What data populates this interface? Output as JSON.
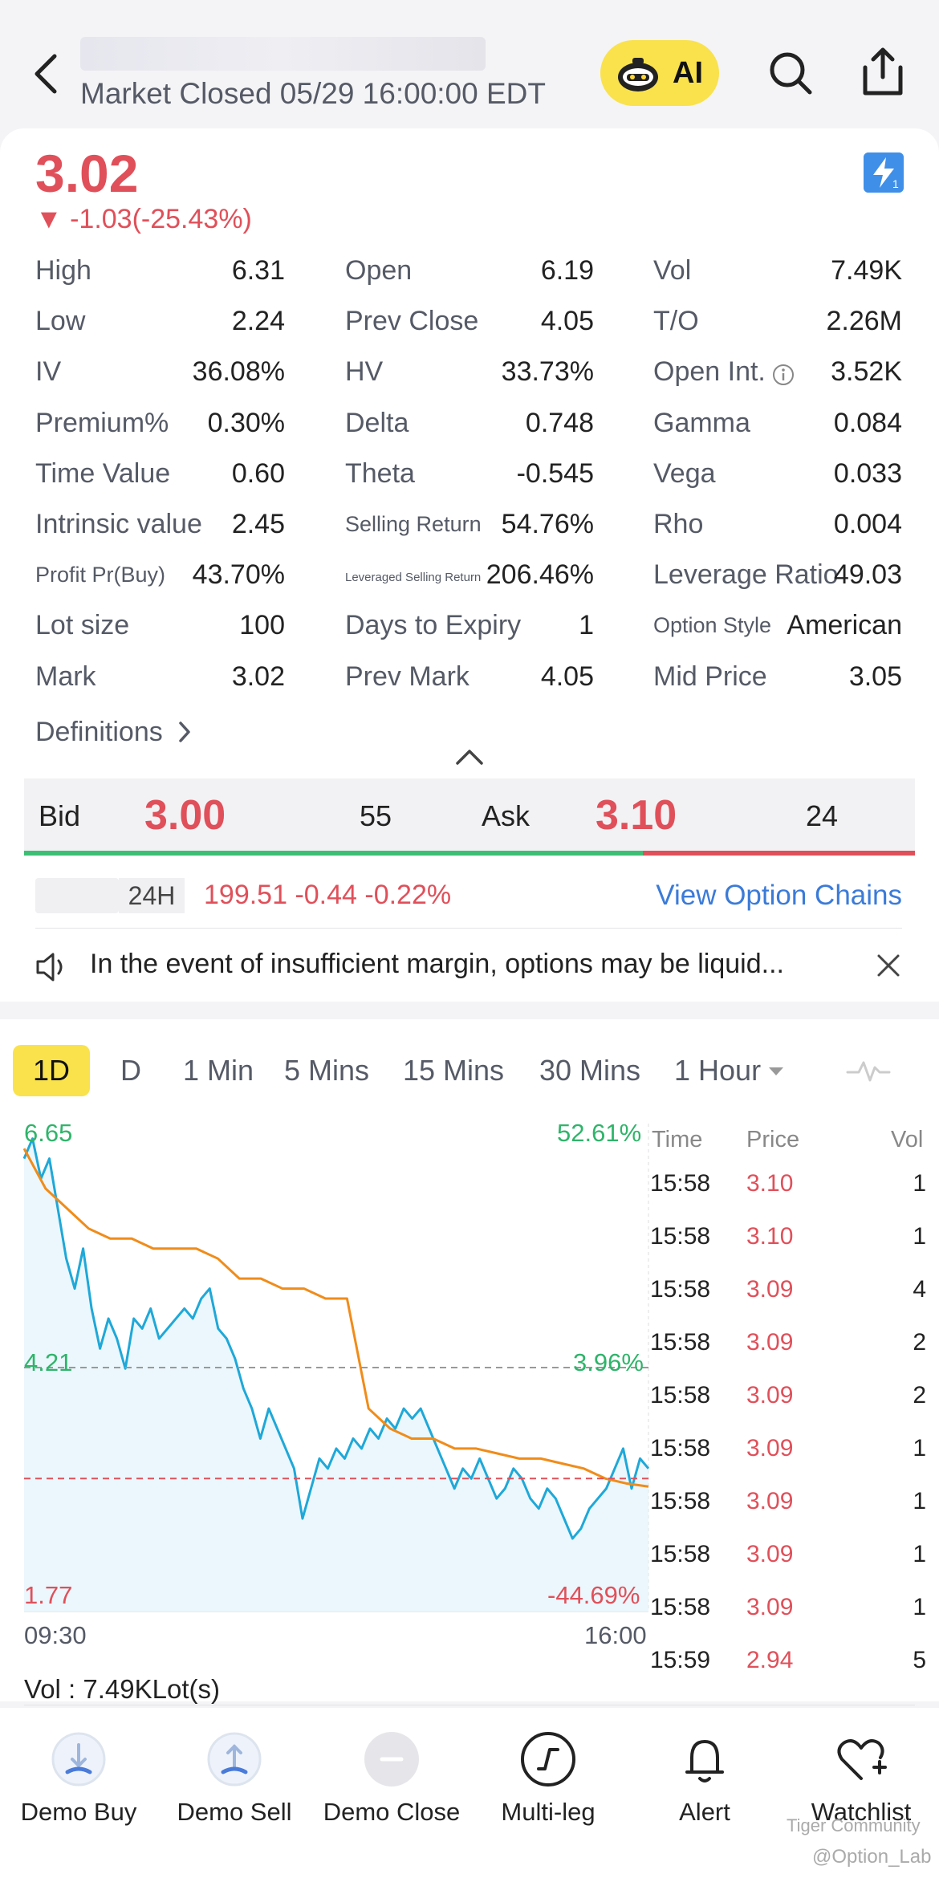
{
  "header": {
    "market_status": "Market Closed  05/29 16:00:00 EDT",
    "ai_label": "AI"
  },
  "quote": {
    "price": "3.02",
    "change": "▼ -1.03(-25.43%)",
    "color_down": "#e0505a"
  },
  "stats": [
    [
      {
        "label": "High",
        "value": "6.31"
      },
      {
        "label": "Open",
        "value": "6.19"
      },
      {
        "label": "Vol",
        "value": "7.49K"
      }
    ],
    [
      {
        "label": "Low",
        "value": "2.24"
      },
      {
        "label": "Prev Close",
        "value": "4.05"
      },
      {
        "label": "T/O",
        "value": "2.26M"
      }
    ],
    [
      {
        "label": "IV",
        "value": "36.08%"
      },
      {
        "label": "HV",
        "value": "33.73%"
      },
      {
        "label": "Open Int.",
        "value": "3.52K"
      }
    ],
    [
      {
        "label": "Premium%",
        "value": "0.30%"
      },
      {
        "label": "Delta",
        "value": "0.748"
      },
      {
        "label": "Gamma",
        "value": "0.084"
      }
    ],
    [
      {
        "label": "Time Value",
        "value": "0.60"
      },
      {
        "label": "Theta",
        "value": "-0.545"
      },
      {
        "label": "Vega",
        "value": "0.033"
      }
    ],
    [
      {
        "label": "Intrinsic value",
        "value": "2.45"
      },
      {
        "label": "Selling Return",
        "value": "54.76%"
      },
      {
        "label": "Rho",
        "value": "0.004"
      }
    ],
    [
      {
        "label": "Profit Pr(Buy)",
        "value": "43.70%"
      },
      {
        "label": "Leveraged Selling Return",
        "value": "206.46%"
      },
      {
        "label": "Leverage Ratio",
        "value": "49.03"
      }
    ],
    [
      {
        "label": "Lot size",
        "value": "100"
      },
      {
        "label": "Days to Expiry",
        "value": "1"
      },
      {
        "label": "Option Style",
        "value": "American"
      }
    ],
    [
      {
        "label": "Mark",
        "value": "3.02"
      },
      {
        "label": "Prev Mark",
        "value": "4.05"
      },
      {
        "label": "Mid Price",
        "value": "3.05"
      }
    ]
  ],
  "definitions_label": "Definitions",
  "bid_ask": {
    "bid_label": "Bid",
    "bid_price": "3.00",
    "bid_size": "55",
    "ask_label": "Ask",
    "ask_price": "3.10",
    "ask_size": "24"
  },
  "underlying": {
    "session_tag": "24H",
    "quote": "199.51 -0.44 -0.22%",
    "view_chains": "View Option Chains"
  },
  "notice": {
    "text": "In the event of insufficient margin, options may be liquid..."
  },
  "period_tabs": [
    "1D",
    "D",
    "1 Min",
    "5 Mins",
    "15 Mins",
    "30 Mins",
    "1 Hour"
  ],
  "chart_data": {
    "type": "line",
    "x_start_label": "09:30",
    "x_end_label": "16:00",
    "y_max_label": "6.65",
    "y_max_pct": "52.61%",
    "y_ref_label": "4.21",
    "y_ref_pct": "3.96%",
    "y_min_label": "1.77",
    "y_min_pct": "-44.69%",
    "ylim": [
      1.77,
      6.65
    ],
    "prev_close": 4.05,
    "series": [
      {
        "color": "#1fa8d8",
        "values": [
          6.3,
          6.5,
          6.1,
          6.3,
          5.8,
          5.3,
          5.0,
          5.4,
          4.8,
          4.4,
          4.7,
          4.5,
          4.2,
          4.7,
          4.6,
          4.8,
          4.5,
          4.6,
          4.7,
          4.8,
          4.7,
          4.9,
          5.0,
          4.6,
          4.5,
          4.3,
          4.0,
          3.8,
          3.5,
          3.8,
          3.6,
          3.4,
          3.2,
          2.7,
          3.0,
          3.3,
          3.2,
          3.4,
          3.3,
          3.5,
          3.4,
          3.6,
          3.5,
          3.7,
          3.6,
          3.8,
          3.7,
          3.8,
          3.6,
          3.4,
          3.2,
          3.0,
          3.2,
          3.1,
          3.3,
          3.1,
          2.9,
          3.0,
          3.2,
          3.1,
          2.9,
          2.8,
          3.0,
          2.9,
          2.7,
          2.5,
          2.6,
          2.8,
          2.9,
          3.0,
          3.2,
          3.4,
          3.0,
          3.3,
          3.2
        ]
      },
      {
        "color": "#f08c1a",
        "values": [
          6.4,
          6.0,
          5.8,
          5.6,
          5.5,
          5.5,
          5.4,
          5.4,
          5.4,
          5.3,
          5.1,
          5.1,
          5.0,
          5.0,
          4.9,
          4.9,
          3.8,
          3.6,
          3.5,
          3.5,
          3.4,
          3.4,
          3.35,
          3.3,
          3.3,
          3.25,
          3.2,
          3.1,
          3.05,
          3.02
        ]
      }
    ],
    "ref_lines": [
      {
        "value": 4.21,
        "color": "#999999",
        "style": "dashed"
      },
      {
        "value": 3.1,
        "color": "#e0505a",
        "style": "dashed"
      }
    ]
  },
  "ticks": {
    "headers": {
      "time": "Time",
      "price": "Price",
      "vol": "Vol"
    },
    "rows": [
      {
        "time": "15:58",
        "price": "3.10",
        "vol": "1"
      },
      {
        "time": "15:58",
        "price": "3.10",
        "vol": "1"
      },
      {
        "time": "15:58",
        "price": "3.09",
        "vol": "4"
      },
      {
        "time": "15:58",
        "price": "3.09",
        "vol": "2"
      },
      {
        "time": "15:58",
        "price": "3.09",
        "vol": "2"
      },
      {
        "time": "15:58",
        "price": "3.09",
        "vol": "1"
      },
      {
        "time": "15:58",
        "price": "3.09",
        "vol": "1"
      },
      {
        "time": "15:58",
        "price": "3.09",
        "vol": "1"
      },
      {
        "time": "15:58",
        "price": "3.09",
        "vol": "1"
      },
      {
        "time": "15:59",
        "price": "2.94",
        "vol": "5"
      }
    ]
  },
  "volume_label": "Vol :  7.49KLot(s)",
  "actions": [
    {
      "label": "Demo Buy",
      "icon": "demo-buy-icon"
    },
    {
      "label": "Demo Sell",
      "icon": "demo-sell-icon"
    },
    {
      "label": "Demo Close",
      "icon": "demo-close-icon"
    },
    {
      "label": "Multi-leg",
      "icon": "multi-leg-icon"
    },
    {
      "label": "Alert",
      "icon": "bell-icon"
    },
    {
      "label": "Watchlist",
      "icon": "heart-plus-icon"
    }
  ],
  "watermark": {
    "community": "Tiger Community",
    "handle": "@Option_Lab"
  }
}
